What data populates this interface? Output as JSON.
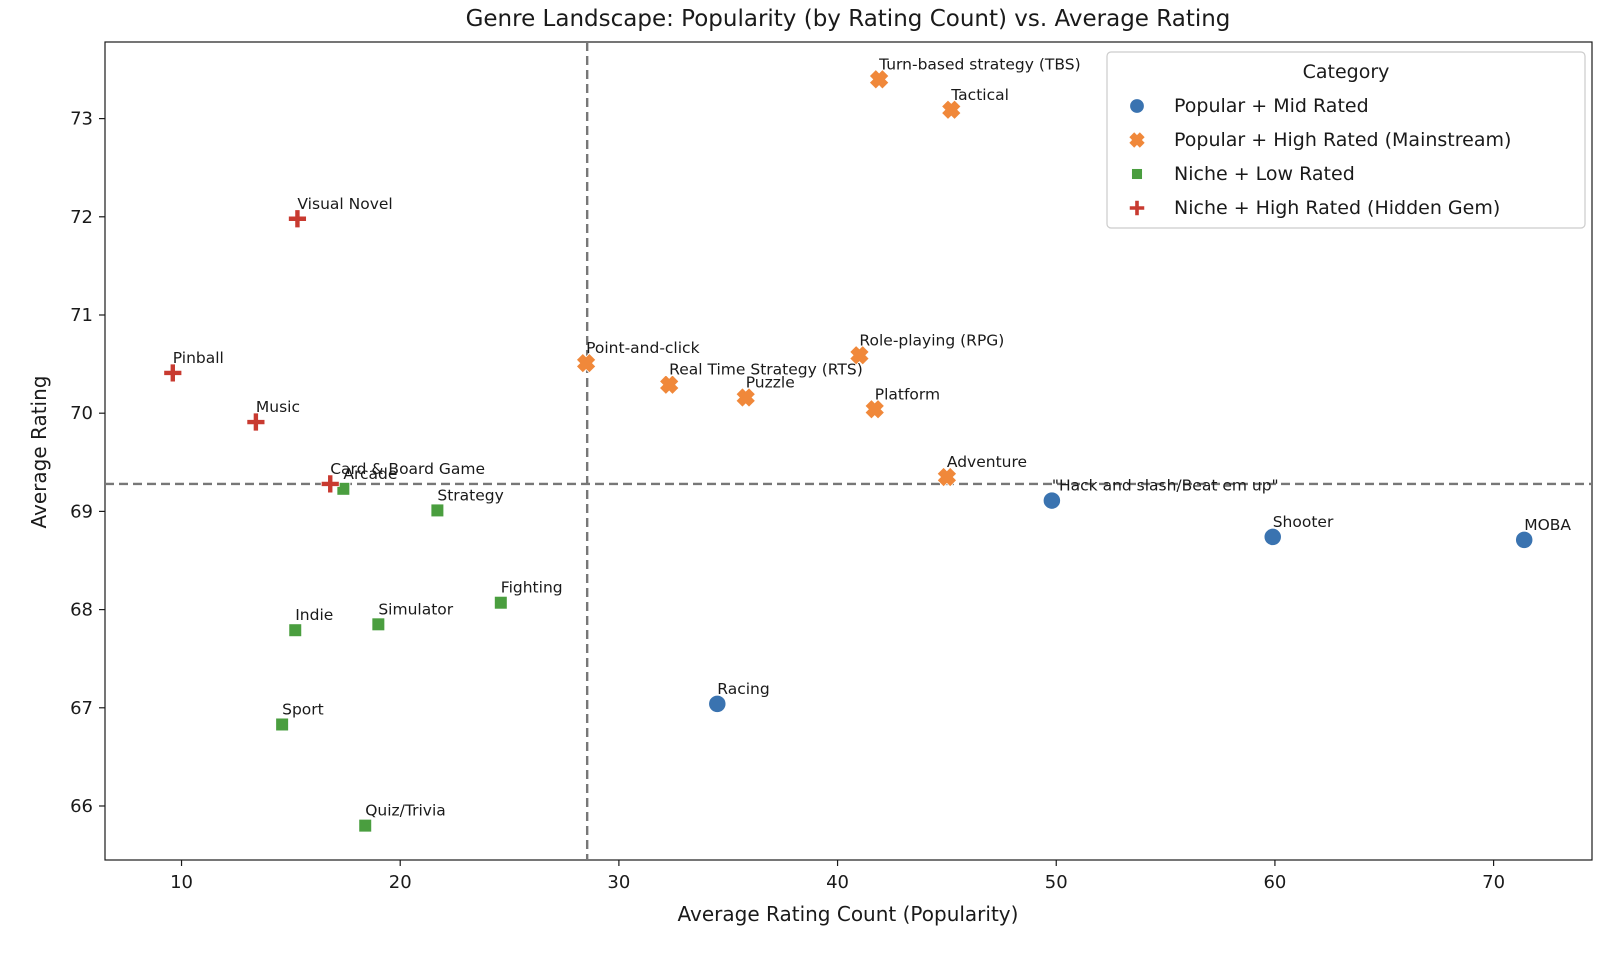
{
  "chart_data": {
    "type": "scatter",
    "title": "Genre Landscape: Popularity (by Rating Count) vs. Average Rating",
    "xlabel": "Average Rating Count (Popularity)",
    "ylabel": "Average Rating",
    "xlim": [
      6.5,
      74.5
    ],
    "ylim": [
      65.45,
      73.78
    ],
    "xticks": [
      10,
      20,
      30,
      40,
      50,
      60,
      70
    ],
    "yticks": [
      66,
      67,
      68,
      69,
      70,
      71,
      72,
      73
    ],
    "reference_lines": {
      "x": 28.55,
      "y": 69.28
    },
    "grid": false,
    "legend": {
      "title": "Category",
      "placement": "top-right"
    },
    "series": [
      {
        "name": "Popular + Mid Rated",
        "marker": "circle",
        "color": "#3a73b0",
        "points": [
          {
            "label": "\"Hack and slash/Beat em up\"",
            "x": 49.8,
            "y": 69.11
          },
          {
            "label": "Shooter",
            "x": 59.9,
            "y": 68.74
          },
          {
            "label": "MOBA",
            "x": 71.4,
            "y": 68.71
          },
          {
            "label": "Racing",
            "x": 34.5,
            "y": 67.04
          }
        ]
      },
      {
        "name": "Popular + High Rated (Mainstream)",
        "marker": "x",
        "color": "#f0883a",
        "points": [
          {
            "label": "Turn-based strategy (TBS)",
            "x": 41.9,
            "y": 73.4
          },
          {
            "label": "Tactical",
            "x": 45.2,
            "y": 73.09
          },
          {
            "label": "Point-and-click",
            "x": 28.5,
            "y": 70.51
          },
          {
            "label": "Role-playing (RPG)",
            "x": 41.0,
            "y": 70.59
          },
          {
            "label": "Real Time Strategy (RTS)",
            "x": 32.3,
            "y": 70.29
          },
          {
            "label": "Puzzle",
            "x": 35.8,
            "y": 70.16
          },
          {
            "label": "Platform",
            "x": 41.7,
            "y": 70.04
          },
          {
            "label": "Adventure",
            "x": 45.0,
            "y": 69.35
          }
        ]
      },
      {
        "name": "Niche + Low Rated",
        "marker": "square",
        "color": "#4a9e3f",
        "points": [
          {
            "label": "Arcade",
            "x": 17.4,
            "y": 69.23
          },
          {
            "label": "Strategy",
            "x": 21.7,
            "y": 69.01
          },
          {
            "label": "Fighting",
            "x": 24.6,
            "y": 68.07
          },
          {
            "label": "Simulator",
            "x": 19.0,
            "y": 67.85
          },
          {
            "label": "Indie",
            "x": 15.2,
            "y": 67.79
          },
          {
            "label": "Sport",
            "x": 14.6,
            "y": 66.83
          },
          {
            "label": "Quiz/Trivia",
            "x": 18.4,
            "y": 65.8
          }
        ]
      },
      {
        "name": "Niche + High Rated (Hidden Gem)",
        "marker": "plus",
        "color": "#c83a30",
        "points": [
          {
            "label": "Visual Novel",
            "x": 15.3,
            "y": 71.98
          },
          {
            "label": "Pinball",
            "x": 9.6,
            "y": 70.41
          },
          {
            "label": "Music",
            "x": 13.4,
            "y": 69.91
          },
          {
            "label": "Card & Board Game",
            "x": 16.8,
            "y": 69.28
          }
        ]
      }
    ]
  }
}
